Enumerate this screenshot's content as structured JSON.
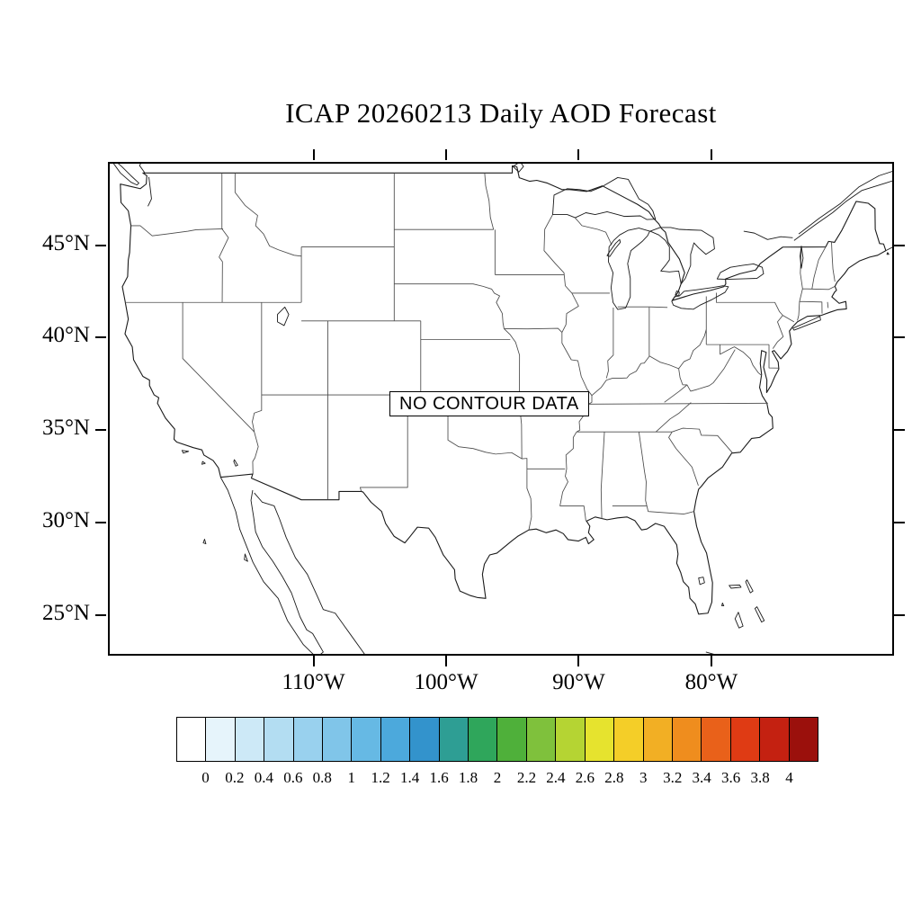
{
  "title": "ICAP 20260213 Daily AOD Forecast",
  "map": {
    "no_data_label": "NO CONTOUR DATA"
  },
  "axes": {
    "lat_ticks": [
      {
        "value": 45,
        "label": "45°N"
      },
      {
        "value": 40,
        "label": "40°N"
      },
      {
        "value": 35,
        "label": "35°N"
      },
      {
        "value": 30,
        "label": "30°N"
      },
      {
        "value": 25,
        "label": "25°N"
      }
    ],
    "lon_ticks": [
      {
        "value": -110,
        "label": "110°W"
      },
      {
        "value": -100,
        "label": "100°W"
      },
      {
        "value": -90,
        "label": "90°W"
      },
      {
        "value": -80,
        "label": "80°W"
      }
    ]
  },
  "colorbar": {
    "labels": [
      "0",
      "0.2",
      "0.4",
      "0.6",
      "0.8",
      "1",
      "1.2",
      "1.4",
      "1.6",
      "1.8",
      "2",
      "2.2",
      "2.4",
      "2.6",
      "2.8",
      "3",
      "3.2",
      "3.4",
      "3.6",
      "3.8",
      "4"
    ],
    "colors": [
      "#FFFFFF",
      "#E6F4FB",
      "#CDE9F7",
      "#B3DDF2",
      "#99D1EE",
      "#80C5E9",
      "#66B9E4",
      "#4CA9DC",
      "#3393CC",
      "#2E9E94",
      "#2FA65B",
      "#4FB03A",
      "#7FC13C",
      "#B5D433",
      "#E6E32E",
      "#F4CE28",
      "#F2AF24",
      "#EF8D1E",
      "#E9611A",
      "#DF3B14",
      "#C42111",
      "#9B100C"
    ]
  },
  "chart_data": {
    "type": "map-contour",
    "title": "ICAP 20260213 Daily AOD Forecast",
    "annotation": "NO CONTOUR DATA",
    "x_axis": {
      "ticks": [
        -110,
        -100,
        -90,
        -80
      ],
      "tick_labels": [
        "110°W",
        "100°W",
        "90°W",
        "80°W"
      ],
      "range": [
        -125.5,
        -66.5
      ]
    },
    "y_axis": {
      "ticks": [
        25,
        30,
        35,
        40,
        45
      ],
      "tick_labels": [
        "25°N",
        "30°N",
        "35°N",
        "40°N",
        "45°N"
      ],
      "range": [
        23.0,
        49.5
      ]
    },
    "colorbar_levels": [
      0,
      0.2,
      0.4,
      0.6,
      0.8,
      1,
      1.2,
      1.4,
      1.6,
      1.8,
      2,
      2.2,
      2.4,
      2.6,
      2.8,
      3,
      3.2,
      3.4,
      3.6,
      3.8,
      4
    ],
    "series": []
  }
}
